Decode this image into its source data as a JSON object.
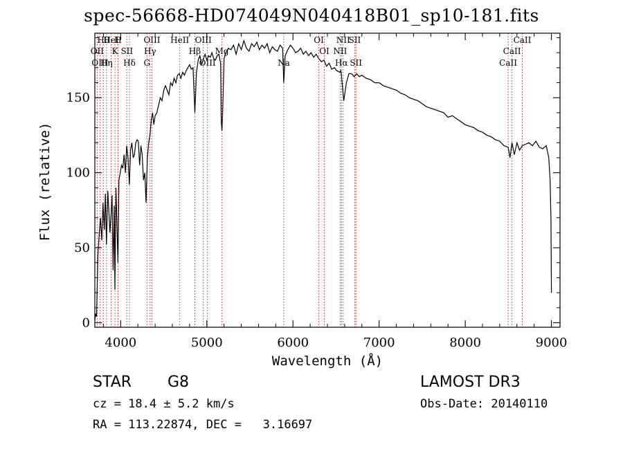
{
  "page": {
    "title": "spec-56668-HD074049N040418B01_sp10-181.fits",
    "object_class": "STAR",
    "subclass": "G8",
    "survey": "LAMOST DR3",
    "redshift_line": "cz = 18.4 ± 5.2 km/s",
    "obs_date": "Obs-Date: 20140110",
    "coords_line": "RA = 113.22874, DEC =   3.16697"
  },
  "chart_data": {
    "type": "line",
    "xlabel": "Wavelength (Å)",
    "ylabel": "Flux (relative)",
    "xlim": [
      3700,
      9100
    ],
    "ylim": [
      -3,
      193
    ],
    "x_ticks": [
      4000,
      5000,
      6000,
      7000,
      8000,
      9000
    ],
    "y_ticks": [
      0,
      50,
      100,
      150
    ],
    "grid": false,
    "legend": "none",
    "line_color": "#000000",
    "marker_color": "#b22222",
    "series": [
      {
        "x": [
          3700,
          3710,
          3720,
          3735,
          3750,
          3765,
          3780,
          3795,
          3810,
          3822,
          3835,
          3850,
          3862,
          3875,
          3888,
          3900,
          3912,
          3925,
          3933,
          3945,
          3955,
          3968,
          3980,
          3995,
          4010,
          4025,
          4040,
          4055,
          4070,
          4085,
          4101,
          4115,
          4130,
          4145,
          4160,
          4175,
          4190,
          4205,
          4220,
          4235,
          4250,
          4265,
          4280,
          4295,
          4310,
          4325,
          4340,
          4355,
          4370,
          4385,
          4400,
          4420,
          4440,
          4460,
          4480,
          4500,
          4520,
          4540,
          4560,
          4580,
          4600,
          4620,
          4640,
          4660,
          4680,
          4700,
          4720,
          4740,
          4760,
          4780,
          4800,
          4820,
          4840,
          4861,
          4880,
          4900,
          4920,
          4940,
          4960,
          4980,
          5000,
          5020,
          5040,
          5060,
          5080,
          5100,
          5120,
          5140,
          5160,
          5167,
          5175,
          5183,
          5200,
          5220,
          5250,
          5280,
          5310,
          5340,
          5370,
          5400,
          5430,
          5460,
          5490,
          5520,
          5550,
          5580,
          5610,
          5640,
          5670,
          5700,
          5730,
          5760,
          5790,
          5820,
          5850,
          5880,
          5893,
          5910,
          5940,
          5970,
          6000,
          6030,
          6060,
          6090,
          6120,
          6150,
          6180,
          6210,
          6240,
          6270,
          6300,
          6330,
          6360,
          6390,
          6420,
          6450,
          6480,
          6510,
          6540,
          6555,
          6563,
          6570,
          6590,
          6620,
          6650,
          6680,
          6710,
          6740,
          6770,
          6800,
          6850,
          6900,
          6950,
          7000,
          7050,
          7100,
          7150,
          7200,
          7250,
          7300,
          7350,
          7400,
          7450,
          7500,
          7550,
          7600,
          7650,
          7700,
          7750,
          7800,
          7850,
          7900,
          7950,
          8000,
          8050,
          8100,
          8150,
          8200,
          8250,
          8300,
          8350,
          8400,
          8450,
          8498,
          8520,
          8542,
          8570,
          8600,
          8630,
          8662,
          8700,
          8740,
          8780,
          8820,
          8860,
          8900,
          8940,
          8970,
          8985,
          8995,
          9000
        ],
        "y": [
          2,
          6,
          4,
          45,
          58,
          70,
          55,
          80,
          62,
          86,
          52,
          88,
          75,
          60,
          72,
          85,
          35,
          78,
          22,
          90,
          70,
          40,
          95,
          100,
          105,
          103,
          112,
          100,
          118,
          110,
          92,
          115,
          120,
          110,
          112,
          120,
          122,
          121,
          105,
          118,
          112,
          95,
          100,
          80,
          110,
          120,
          125,
          135,
          140,
          132,
          138,
          140,
          145,
          150,
          148,
          155,
          158,
          155,
          152,
          160,
          158,
          163,
          160,
          165,
          166,
          163,
          167,
          165,
          168,
          170,
          172,
          169,
          170,
          140,
          167,
          175,
          178,
          172,
          176,
          179,
          175,
          178,
          177,
          180,
          176,
          175,
          178,
          179,
          173,
          135,
          128,
          140,
          176,
          180,
          183,
          182,
          185,
          179,
          186,
          182,
          188,
          183,
          181,
          186,
          184,
          187,
          182,
          185,
          183,
          186,
          180,
          184,
          182,
          181,
          185,
          183,
          160,
          178,
          182,
          185,
          183,
          180,
          181,
          183,
          179,
          181,
          178,
          180,
          177,
          179,
          176,
          174,
          175,
          171,
          173,
          169,
          170,
          168,
          167,
          168,
          165,
          160,
          148,
          160,
          166,
          166,
          164,
          166,
          164,
          165,
          163,
          162,
          160,
          160,
          158,
          157,
          156,
          155,
          153,
          152,
          150,
          149,
          148,
          146,
          144,
          143,
          142,
          141,
          140,
          137,
          138,
          136,
          134,
          132,
          131,
          130,
          128,
          127,
          125,
          124,
          122,
          121,
          118,
          117,
          110,
          120,
          112,
          120,
          115,
          118,
          119,
          120,
          118,
          121,
          117,
          116,
          118,
          110,
          95,
          70,
          20
        ]
      }
    ],
    "line_markers": [
      {
        "label": "Hθ",
        "x": 3798
      },
      {
        "label": "OII",
        "x": 3727
      },
      {
        "label": "OIII",
        "x": 3760
      },
      {
        "label": "HeI",
        "x": 3889
      },
      {
        "label": "K",
        "x": 3934
      },
      {
        "label": "Hη",
        "x": 3835
      },
      {
        "label": "H",
        "x": 3969
      },
      {
        "label": "SII",
        "x": 4072
      },
      {
        "label": "Hδ",
        "x": 4102
      },
      {
        "label": "OIII",
        "x": 4363
      },
      {
        "label": "Hγ",
        "x": 4341
      },
      {
        "label": "G",
        "x": 4305
      },
      {
        "label": "HeII",
        "x": 4686
      },
      {
        "label": "Hβ",
        "x": 4861
      },
      {
        "label": "OIII",
        "x": 5007
      },
      {
        "label": "OIII",
        "x": 4959
      },
      {
        "label": "Mg",
        "x": 5175
      },
      {
        "label": "Na",
        "x": 5893
      },
      {
        "label": "OI",
        "x": 6300
      },
      {
        "label": "OI",
        "x": 6364
      },
      {
        "label": "Hα",
        "x": 6563
      },
      {
        "label": "SII",
        "x": 6717
      },
      {
        "label": "NII",
        "x": 6548
      },
      {
        "label": "SII",
        "x": 6731
      },
      {
        "label": "NII",
        "x": 6583
      },
      {
        "label": "CaII",
        "x": 8542
      },
      {
        "label": "CaII",
        "x": 8498
      },
      {
        "label": "CaII",
        "x": 8662
      }
    ]
  }
}
